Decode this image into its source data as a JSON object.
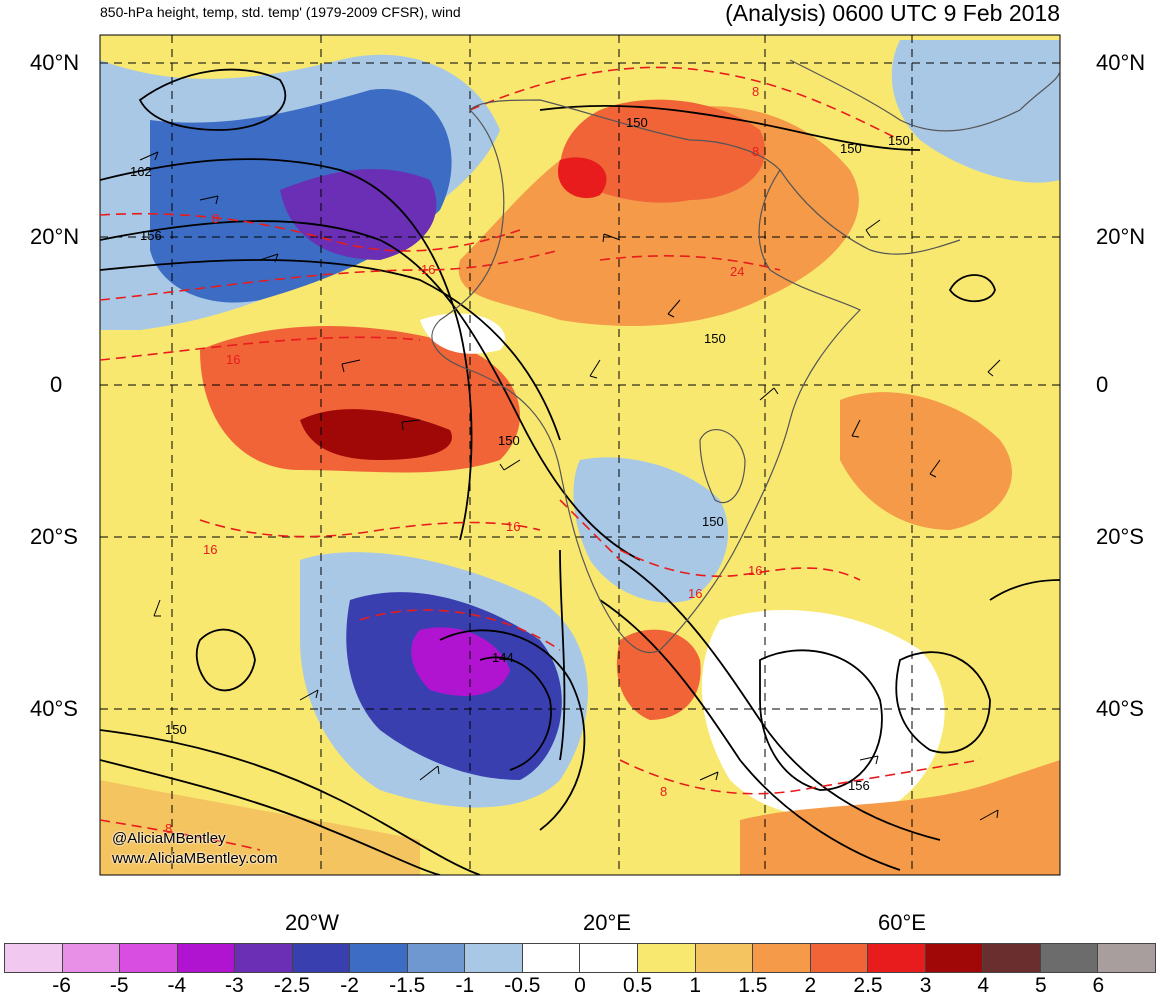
{
  "header": {
    "left_title": "850-hPa height, temp, std. temp' (1979-2009 CFSR), wind",
    "right_title": "(Analysis) 0600 UTC 9 Feb 2018"
  },
  "map": {
    "lat_labels": [
      "40°N",
      "20°N",
      "0",
      "20°S",
      "40°S"
    ],
    "lon_labels": [
      "20°W",
      "20°E",
      "60°E"
    ],
    "height_contour_labels": [
      "162",
      "156",
      "150",
      "150",
      "150",
      "150",
      "150",
      "150",
      "150",
      "144",
      "156",
      "150"
    ],
    "temp_contour_labels": [
      "8",
      "16",
      "16",
      "16",
      "16",
      "16",
      "16",
      "24",
      "8",
      "8",
      "8",
      "8"
    ],
    "watermark_handle": "@AliciaMBentley",
    "watermark_url": "www.AliciaMBentley.com"
  },
  "colorbar": {
    "labels": [
      "-6",
      "-5",
      "-4",
      "-3",
      "-2.5",
      "-2",
      "-1.5",
      "-1",
      "-0.5",
      "0",
      "0.5",
      "1",
      "1.5",
      "2",
      "2.5",
      "3",
      "4",
      "5",
      "6"
    ],
    "colors": [
      "#f0c8f0",
      "#e890e8",
      "#d84ee0",
      "#b014d0",
      "#6a2fb4",
      "#3a3fb0",
      "#3c6cc4",
      "#6f98d0",
      "#a8c8e6",
      "#ffffff",
      "#ffffff",
      "#f8e870",
      "#f4c460",
      "#f49a48",
      "#f06438",
      "#e81c1c",
      "#a00808",
      "#6a2e2e",
      "#6c6c6c",
      "#a89e9e"
    ]
  }
}
